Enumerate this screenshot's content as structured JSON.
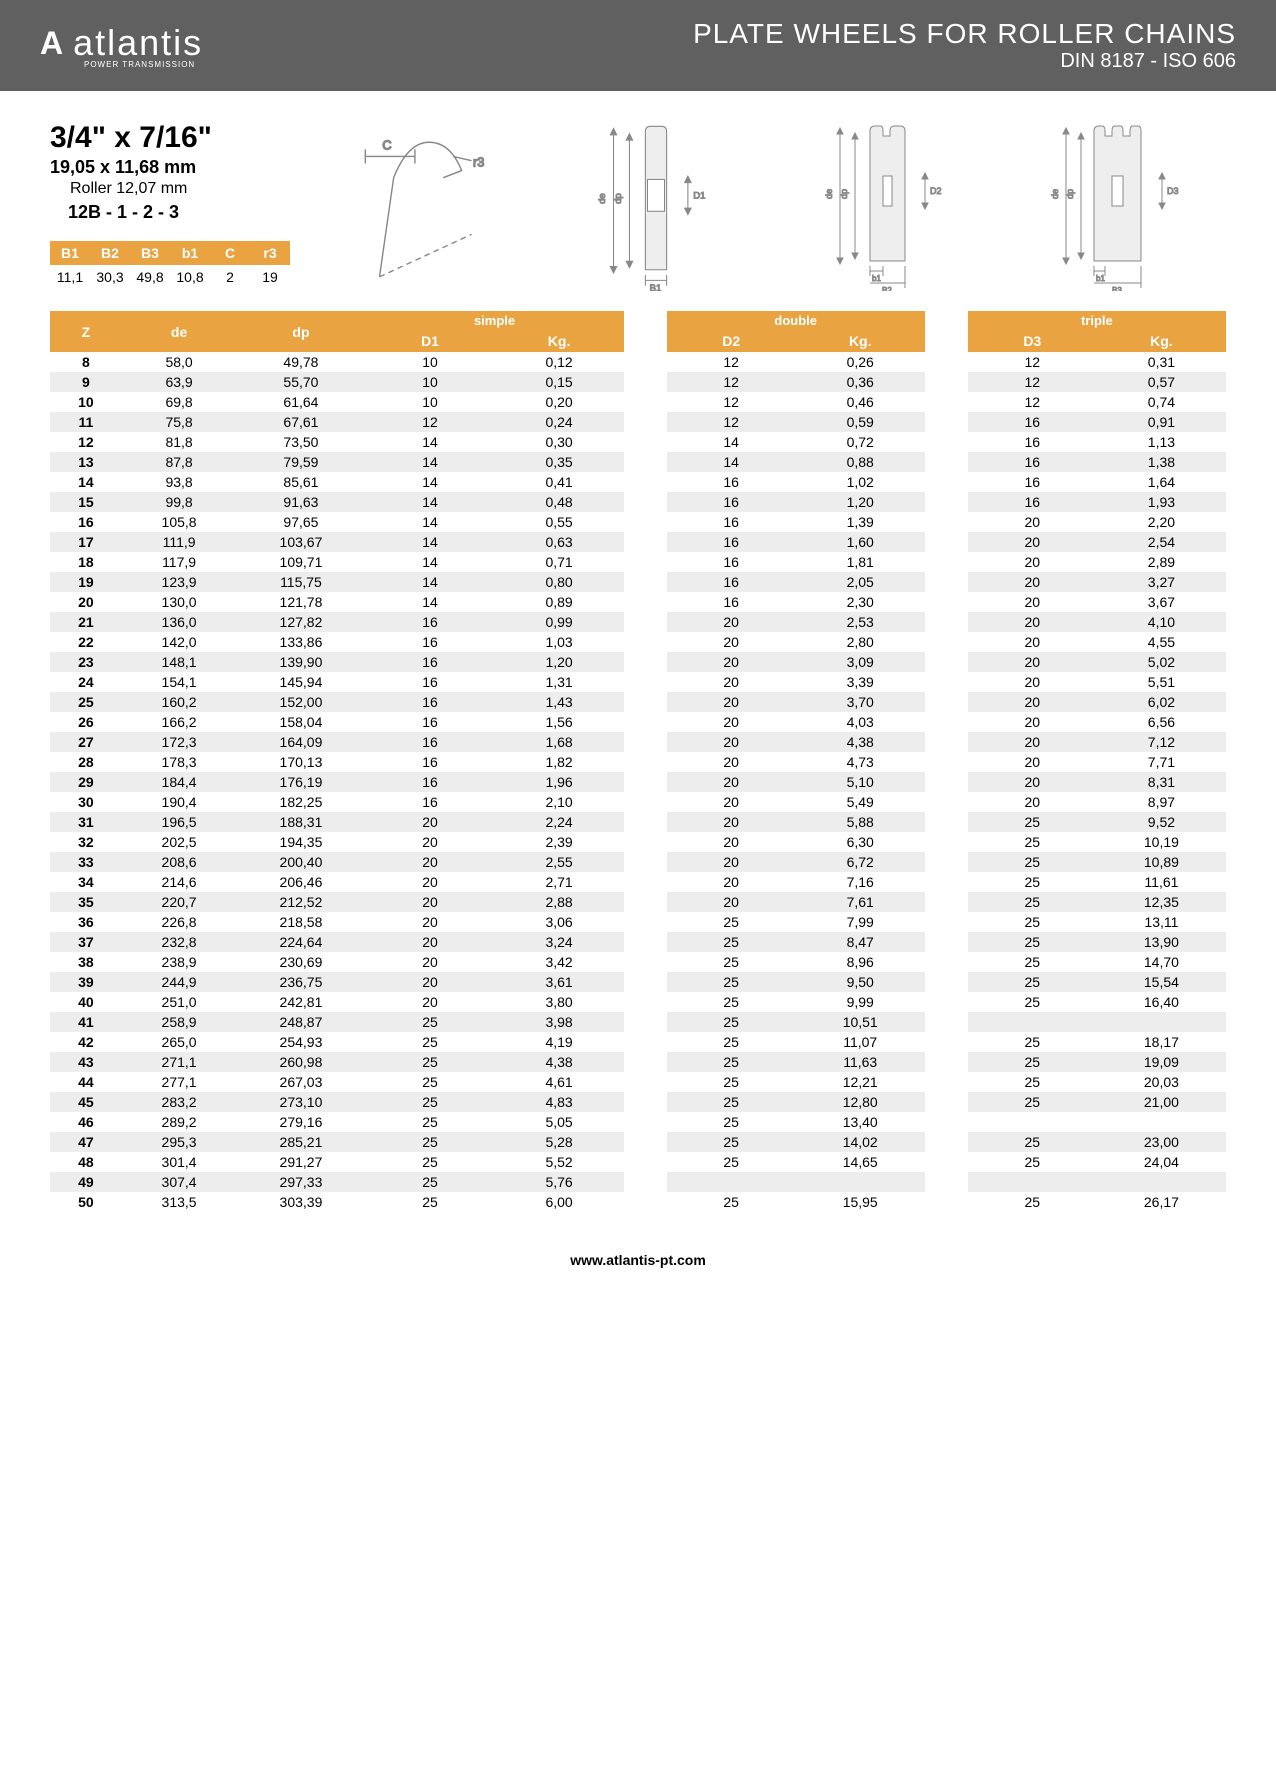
{
  "header": {
    "brand": "atlantis",
    "brand_sub": "POWER TRANSMISSION",
    "title": "PLATE WHEELS FOR ROLLER CHAINS",
    "subtitle": "DIN 8187 - ISO 606"
  },
  "spec": {
    "size_imperial": "3/4\" x 7/16\"",
    "size_metric": "19,05 x 11,68 mm",
    "roller": "Roller 12,07 mm",
    "code": "12B - 1 - 2 - 3",
    "params": {
      "headers": [
        "B1",
        "B2",
        "B3",
        "b1",
        "C",
        "r3"
      ],
      "values": [
        "11,1",
        "30,3",
        "49,8",
        "10,8",
        "2",
        "19"
      ]
    }
  },
  "table": {
    "groups": [
      "simple",
      "double",
      "triple"
    ],
    "headers": {
      "z": "Z",
      "de": "de",
      "dp": "dp",
      "d1": "D1",
      "d2": "D2",
      "d3": "D3",
      "kg": "Kg."
    },
    "rows": [
      {
        "z": "8",
        "de": "58,0",
        "dp": "49,78",
        "d1": "10",
        "kg1": "0,12",
        "d2": "12",
        "kg2": "0,26",
        "d3": "12",
        "kg3": "0,31"
      },
      {
        "z": "9",
        "de": "63,9",
        "dp": "55,70",
        "d1": "10",
        "kg1": "0,15",
        "d2": "12",
        "kg2": "0,36",
        "d3": "12",
        "kg3": "0,57"
      },
      {
        "z": "10",
        "de": "69,8",
        "dp": "61,64",
        "d1": "10",
        "kg1": "0,20",
        "d2": "12",
        "kg2": "0,46",
        "d3": "12",
        "kg3": "0,74"
      },
      {
        "z": "11",
        "de": "75,8",
        "dp": "67,61",
        "d1": "12",
        "kg1": "0,24",
        "d2": "12",
        "kg2": "0,59",
        "d3": "16",
        "kg3": "0,91"
      },
      {
        "z": "12",
        "de": "81,8",
        "dp": "73,50",
        "d1": "14",
        "kg1": "0,30",
        "d2": "14",
        "kg2": "0,72",
        "d3": "16",
        "kg3": "1,13"
      },
      {
        "z": "13",
        "de": "87,8",
        "dp": "79,59",
        "d1": "14",
        "kg1": "0,35",
        "d2": "14",
        "kg2": "0,88",
        "d3": "16",
        "kg3": "1,38"
      },
      {
        "z": "14",
        "de": "93,8",
        "dp": "85,61",
        "d1": "14",
        "kg1": "0,41",
        "d2": "16",
        "kg2": "1,02",
        "d3": "16",
        "kg3": "1,64"
      },
      {
        "z": "15",
        "de": "99,8",
        "dp": "91,63",
        "d1": "14",
        "kg1": "0,48",
        "d2": "16",
        "kg2": "1,20",
        "d3": "16",
        "kg3": "1,93"
      },
      {
        "z": "16",
        "de": "105,8",
        "dp": "97,65",
        "d1": "14",
        "kg1": "0,55",
        "d2": "16",
        "kg2": "1,39",
        "d3": "20",
        "kg3": "2,20"
      },
      {
        "z": "17",
        "de": "111,9",
        "dp": "103,67",
        "d1": "14",
        "kg1": "0,63",
        "d2": "16",
        "kg2": "1,60",
        "d3": "20",
        "kg3": "2,54"
      },
      {
        "z": "18",
        "de": "117,9",
        "dp": "109,71",
        "d1": "14",
        "kg1": "0,71",
        "d2": "16",
        "kg2": "1,81",
        "d3": "20",
        "kg3": "2,89"
      },
      {
        "z": "19",
        "de": "123,9",
        "dp": "115,75",
        "d1": "14",
        "kg1": "0,80",
        "d2": "16",
        "kg2": "2,05",
        "d3": "20",
        "kg3": "3,27"
      },
      {
        "z": "20",
        "de": "130,0",
        "dp": "121,78",
        "d1": "14",
        "kg1": "0,89",
        "d2": "16",
        "kg2": "2,30",
        "d3": "20",
        "kg3": "3,67"
      },
      {
        "z": "21",
        "de": "136,0",
        "dp": "127,82",
        "d1": "16",
        "kg1": "0,99",
        "d2": "20",
        "kg2": "2,53",
        "d3": "20",
        "kg3": "4,10"
      },
      {
        "z": "22",
        "de": "142,0",
        "dp": "133,86",
        "d1": "16",
        "kg1": "1,03",
        "d2": "20",
        "kg2": "2,80",
        "d3": "20",
        "kg3": "4,55"
      },
      {
        "z": "23",
        "de": "148,1",
        "dp": "139,90",
        "d1": "16",
        "kg1": "1,20",
        "d2": "20",
        "kg2": "3,09",
        "d3": "20",
        "kg3": "5,02"
      },
      {
        "z": "24",
        "de": "154,1",
        "dp": "145,94",
        "d1": "16",
        "kg1": "1,31",
        "d2": "20",
        "kg2": "3,39",
        "d3": "20",
        "kg3": "5,51"
      },
      {
        "z": "25",
        "de": "160,2",
        "dp": "152,00",
        "d1": "16",
        "kg1": "1,43",
        "d2": "20",
        "kg2": "3,70",
        "d3": "20",
        "kg3": "6,02"
      },
      {
        "z": "26",
        "de": "166,2",
        "dp": "158,04",
        "d1": "16",
        "kg1": "1,56",
        "d2": "20",
        "kg2": "4,03",
        "d3": "20",
        "kg3": "6,56"
      },
      {
        "z": "27",
        "de": "172,3",
        "dp": "164,09",
        "d1": "16",
        "kg1": "1,68",
        "d2": "20",
        "kg2": "4,38",
        "d3": "20",
        "kg3": "7,12"
      },
      {
        "z": "28",
        "de": "178,3",
        "dp": "170,13",
        "d1": "16",
        "kg1": "1,82",
        "d2": "20",
        "kg2": "4,73",
        "d3": "20",
        "kg3": "7,71"
      },
      {
        "z": "29",
        "de": "184,4",
        "dp": "176,19",
        "d1": "16",
        "kg1": "1,96",
        "d2": "20",
        "kg2": "5,10",
        "d3": "20",
        "kg3": "8,31"
      },
      {
        "z": "30",
        "de": "190,4",
        "dp": "182,25",
        "d1": "16",
        "kg1": "2,10",
        "d2": "20",
        "kg2": "5,49",
        "d3": "20",
        "kg3": "8,97"
      },
      {
        "z": "31",
        "de": "196,5",
        "dp": "188,31",
        "d1": "20",
        "kg1": "2,24",
        "d2": "20",
        "kg2": "5,88",
        "d3": "25",
        "kg3": "9,52"
      },
      {
        "z": "32",
        "de": "202,5",
        "dp": "194,35",
        "d1": "20",
        "kg1": "2,39",
        "d2": "20",
        "kg2": "6,30",
        "d3": "25",
        "kg3": "10,19"
      },
      {
        "z": "33",
        "de": "208,6",
        "dp": "200,40",
        "d1": "20",
        "kg1": "2,55",
        "d2": "20",
        "kg2": "6,72",
        "d3": "25",
        "kg3": "10,89"
      },
      {
        "z": "34",
        "de": "214,6",
        "dp": "206,46",
        "d1": "20",
        "kg1": "2,71",
        "d2": "20",
        "kg2": "7,16",
        "d3": "25",
        "kg3": "11,61"
      },
      {
        "z": "35",
        "de": "220,7",
        "dp": "212,52",
        "d1": "20",
        "kg1": "2,88",
        "d2": "20",
        "kg2": "7,61",
        "d3": "25",
        "kg3": "12,35"
      },
      {
        "z": "36",
        "de": "226,8",
        "dp": "218,58",
        "d1": "20",
        "kg1": "3,06",
        "d2": "25",
        "kg2": "7,99",
        "d3": "25",
        "kg3": "13,11"
      },
      {
        "z": "37",
        "de": "232,8",
        "dp": "224,64",
        "d1": "20",
        "kg1": "3,24",
        "d2": "25",
        "kg2": "8,47",
        "d3": "25",
        "kg3": "13,90"
      },
      {
        "z": "38",
        "de": "238,9",
        "dp": "230,69",
        "d1": "20",
        "kg1": "3,42",
        "d2": "25",
        "kg2": "8,96",
        "d3": "25",
        "kg3": "14,70"
      },
      {
        "z": "39",
        "de": "244,9",
        "dp": "236,75",
        "d1": "20",
        "kg1": "3,61",
        "d2": "25",
        "kg2": "9,50",
        "d3": "25",
        "kg3": "15,54"
      },
      {
        "z": "40",
        "de": "251,0",
        "dp": "242,81",
        "d1": "20",
        "kg1": "3,80",
        "d2": "25",
        "kg2": "9,99",
        "d3": "25",
        "kg3": "16,40"
      },
      {
        "z": "41",
        "de": "258,9",
        "dp": "248,87",
        "d1": "25",
        "kg1": "3,98",
        "d2": "25",
        "kg2": "10,51",
        "d3": "",
        "kg3": ""
      },
      {
        "z": "42",
        "de": "265,0",
        "dp": "254,93",
        "d1": "25",
        "kg1": "4,19",
        "d2": "25",
        "kg2": "11,07",
        "d3": "25",
        "kg3": "18,17"
      },
      {
        "z": "43",
        "de": "271,1",
        "dp": "260,98",
        "d1": "25",
        "kg1": "4,38",
        "d2": "25",
        "kg2": "11,63",
        "d3": "25",
        "kg3": "19,09"
      },
      {
        "z": "44",
        "de": "277,1",
        "dp": "267,03",
        "d1": "25",
        "kg1": "4,61",
        "d2": "25",
        "kg2": "12,21",
        "d3": "25",
        "kg3": "20,03"
      },
      {
        "z": "45",
        "de": "283,2",
        "dp": "273,10",
        "d1": "25",
        "kg1": "4,83",
        "d2": "25",
        "kg2": "12,80",
        "d3": "25",
        "kg3": "21,00"
      },
      {
        "z": "46",
        "de": "289,2",
        "dp": "279,16",
        "d1": "25",
        "kg1": "5,05",
        "d2": "25",
        "kg2": "13,40",
        "d3": "",
        "kg3": ""
      },
      {
        "z": "47",
        "de": "295,3",
        "dp": "285,21",
        "d1": "25",
        "kg1": "5,28",
        "d2": "25",
        "kg2": "14,02",
        "d3": "25",
        "kg3": "23,00"
      },
      {
        "z": "48",
        "de": "301,4",
        "dp": "291,27",
        "d1": "25",
        "kg1": "5,52",
        "d2": "25",
        "kg2": "14,65",
        "d3": "25",
        "kg3": "24,04"
      },
      {
        "z": "49",
        "de": "307,4",
        "dp": "297,33",
        "d1": "25",
        "kg1": "5,76",
        "d2": "",
        "kg2": "",
        "d3": "",
        "kg3": ""
      },
      {
        "z": "50",
        "de": "313,5",
        "dp": "303,39",
        "d1": "25",
        "kg1": "6,00",
        "d2": "25",
        "kg2": "15,95",
        "d3": "25",
        "kg3": "26,17"
      }
    ]
  },
  "footer": {
    "url": "www.atlantis-pt.com"
  },
  "colors": {
    "header_bg": "#606060",
    "accent": "#e9a441",
    "row_alt": "#ededed",
    "diagram_stroke": "#888888"
  }
}
